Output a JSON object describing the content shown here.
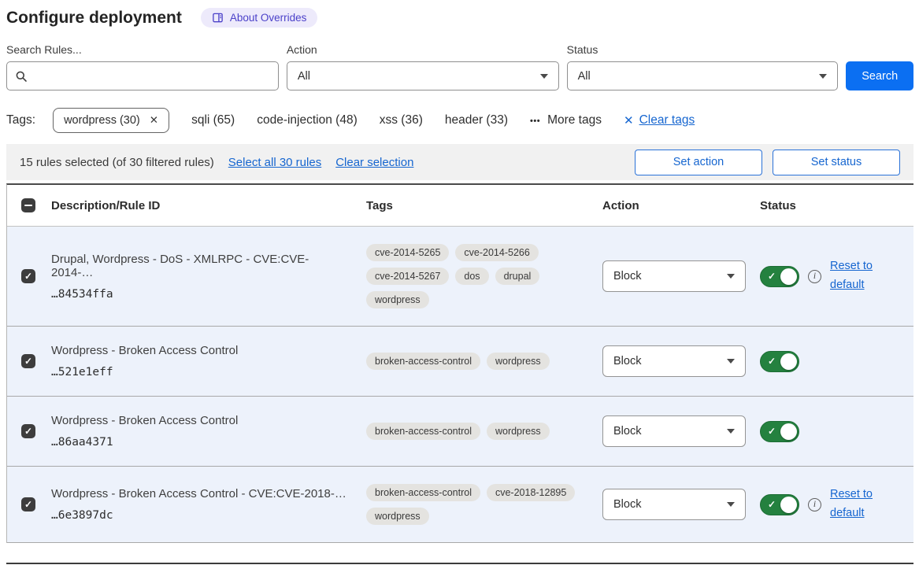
{
  "page": {
    "title": "Configure deployment"
  },
  "about_badge": {
    "label": "About Overrides"
  },
  "filters": {
    "search": {
      "label": "Search Rules...",
      "value": ""
    },
    "action": {
      "label": "Action",
      "value": "All"
    },
    "status": {
      "label": "Status",
      "value": "All"
    },
    "search_button": "Search"
  },
  "tags_bar": {
    "label": "Tags:",
    "selected": {
      "label": "wordpress (30)"
    },
    "available": [
      {
        "label": "sqli (65)"
      },
      {
        "label": "code-injection (48)"
      },
      {
        "label": "xss (36)"
      },
      {
        "label": "header (33)"
      }
    ],
    "more_label": "More tags",
    "clear_label": "Clear tags"
  },
  "selection_bar": {
    "summary": "15 rules selected (of 30 filtered rules)",
    "select_all_label": "Select all 30 rules",
    "clear_selection_label": "Clear selection",
    "set_action_label": "Set action",
    "set_status_label": "Set status"
  },
  "table": {
    "columns": {
      "description": "Description/Rule ID",
      "tags": "Tags",
      "action": "Action",
      "status": "Status"
    },
    "rows": [
      {
        "description": "Drupal, Wordpress - DoS - XMLRPC - CVE:CVE-2014-…",
        "rule_id": "…84534ffa",
        "tags": [
          "cve-2014-5265",
          "cve-2014-5266",
          "cve-2014-5267",
          "dos",
          "drupal",
          "wordpress"
        ],
        "action": "Block",
        "status_on": true,
        "checked": true,
        "reset_label": "Reset to default"
      },
      {
        "description": "Wordpress - Broken Access Control",
        "rule_id": "…521e1eff",
        "tags": [
          "broken-access-control",
          "wordpress"
        ],
        "action": "Block",
        "status_on": true,
        "checked": true,
        "reset_label": ""
      },
      {
        "description": "Wordpress - Broken Access Control",
        "rule_id": "…86aa4371",
        "tags": [
          "broken-access-control",
          "wordpress"
        ],
        "action": "Block",
        "status_on": true,
        "checked": true,
        "reset_label": ""
      },
      {
        "description": "Wordpress - Broken Access Control - CVE:CVE-2018-…",
        "rule_id": "…6e3897dc",
        "tags": [
          "broken-access-control",
          "cve-2018-12895",
          "wordpress"
        ],
        "action": "Block",
        "status_on": true,
        "checked": true,
        "reset_label": "Reset to default"
      }
    ]
  },
  "colors": {
    "primary_button_blue": "#0b6ff2",
    "link_blue": "#1666d0",
    "toggle_green": "#24813f",
    "row_background": "#edf2fb",
    "tag_pill_background": "#e4e3e0",
    "badge_background": "#edeafb",
    "badge_text": "#4b41c9",
    "selection_bar_background": "#f1f1f1",
    "checkbox_fill": "#3d3d3d"
  }
}
